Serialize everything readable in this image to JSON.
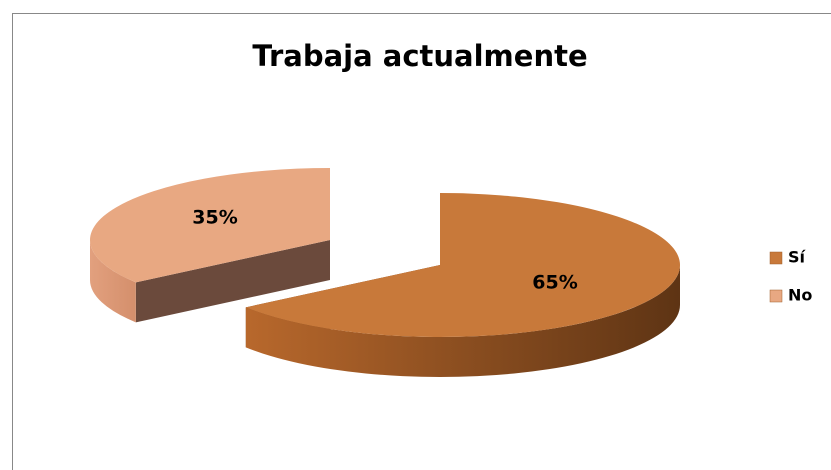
{
  "chart_data": {
    "type": "pie3d",
    "title": "Trabaja actualmente",
    "categories": [
      "Sí",
      "No"
    ],
    "values": [
      65,
      35
    ],
    "value_labels": [
      "65%",
      "35%"
    ],
    "colors": [
      "#c8793a",
      "#e8a882"
    ],
    "legend": "right"
  }
}
